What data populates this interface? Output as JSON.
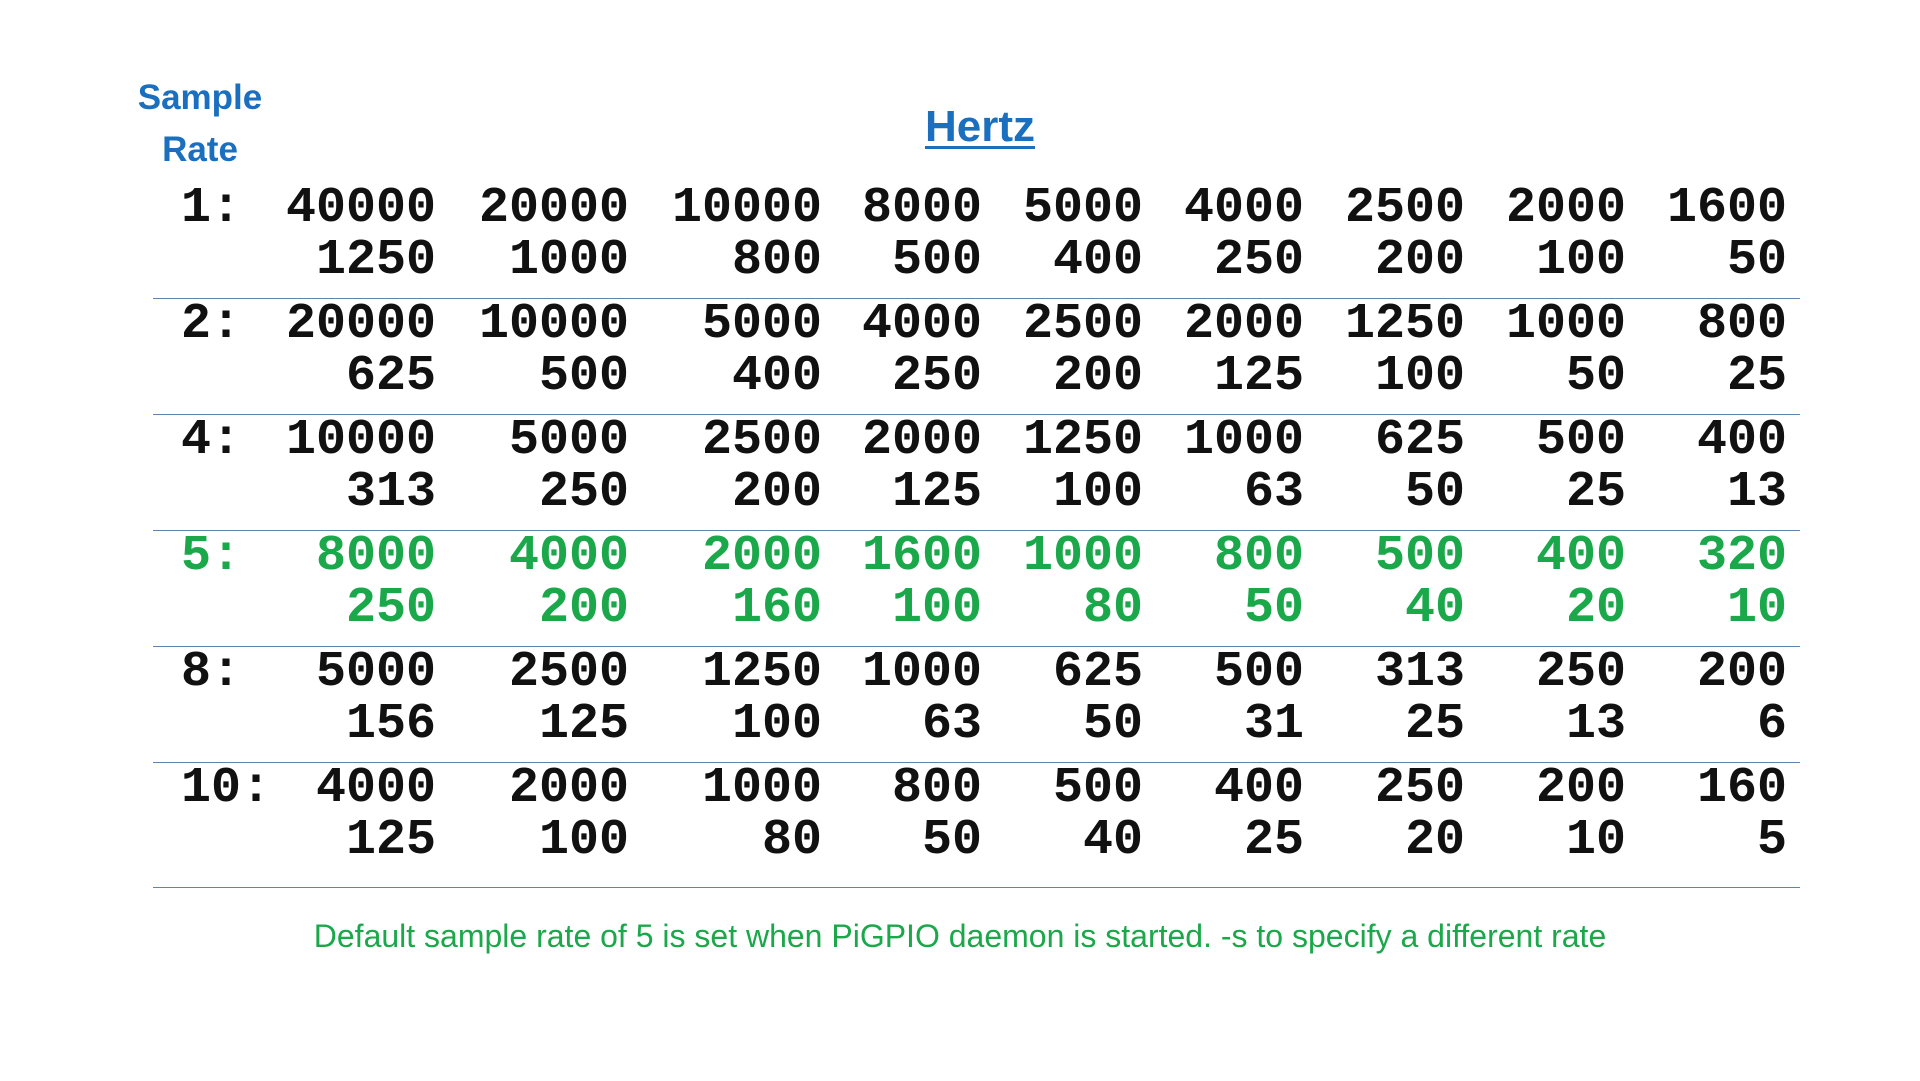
{
  "header": {
    "sample_rate_line1": "Sample",
    "sample_rate_line2": "Rate",
    "hertz": "Hertz"
  },
  "colors": {
    "header_blue": "#1a6fbf",
    "highlight_green": "#1aa84a",
    "divider": "#5a86b0",
    "text": "#111111"
  },
  "rows": [
    {
      "label": "1:",
      "highlight": false,
      "cells": [
        [
          "40000",
          "1250"
        ],
        [
          "20000",
          "1000"
        ],
        [
          "10000",
          "800"
        ],
        [
          "8000",
          "500"
        ],
        [
          "5000",
          "400"
        ],
        [
          "4000",
          "250"
        ],
        [
          "2500",
          "200"
        ],
        [
          "2000",
          "100"
        ],
        [
          "1600",
          "50"
        ]
      ]
    },
    {
      "label": "2:",
      "highlight": false,
      "cells": [
        [
          "20000",
          "625"
        ],
        [
          "10000",
          "500"
        ],
        [
          "5000",
          "400"
        ],
        [
          "4000",
          "250"
        ],
        [
          "2500",
          "200"
        ],
        [
          "2000",
          "125"
        ],
        [
          "1250",
          "100"
        ],
        [
          "1000",
          "50"
        ],
        [
          "800",
          "25"
        ]
      ]
    },
    {
      "label": "4:",
      "highlight": false,
      "cells": [
        [
          "10000",
          "313"
        ],
        [
          "5000",
          "250"
        ],
        [
          "2500",
          "200"
        ],
        [
          "2000",
          "125"
        ],
        [
          "1250",
          "100"
        ],
        [
          "1000",
          "63"
        ],
        [
          "625",
          "50"
        ],
        [
          "500",
          "25"
        ],
        [
          "400",
          "13"
        ]
      ]
    },
    {
      "label": "5:",
      "highlight": true,
      "cells": [
        [
          "8000",
          "250"
        ],
        [
          "4000",
          "200"
        ],
        [
          "2000",
          "160"
        ],
        [
          "1600",
          "100"
        ],
        [
          "1000",
          "80"
        ],
        [
          "800",
          "50"
        ],
        [
          "500",
          "40"
        ],
        [
          "400",
          "20"
        ],
        [
          "320",
          "10"
        ]
      ]
    },
    {
      "label": "8:",
      "highlight": false,
      "cells": [
        [
          "5000",
          "156"
        ],
        [
          "2500",
          "125"
        ],
        [
          "1250",
          "100"
        ],
        [
          "1000",
          "63"
        ],
        [
          "625",
          "50"
        ],
        [
          "500",
          "31"
        ],
        [
          "313",
          "25"
        ],
        [
          "250",
          "13"
        ],
        [
          "200",
          "6"
        ]
      ]
    },
    {
      "label": "10:",
      "highlight": false,
      "cells": [
        [
          "4000",
          "125"
        ],
        [
          "2000",
          "100"
        ],
        [
          "1000",
          "80"
        ],
        [
          "800",
          "50"
        ],
        [
          "500",
          "40"
        ],
        [
          "400",
          "25"
        ],
        [
          "250",
          "20"
        ],
        [
          "200",
          "10"
        ],
        [
          "160",
          "5"
        ]
      ]
    }
  ],
  "footnote": "Default sample rate of 5 is set when PiGPIO daemon is started.  -s to specify a different rate"
}
